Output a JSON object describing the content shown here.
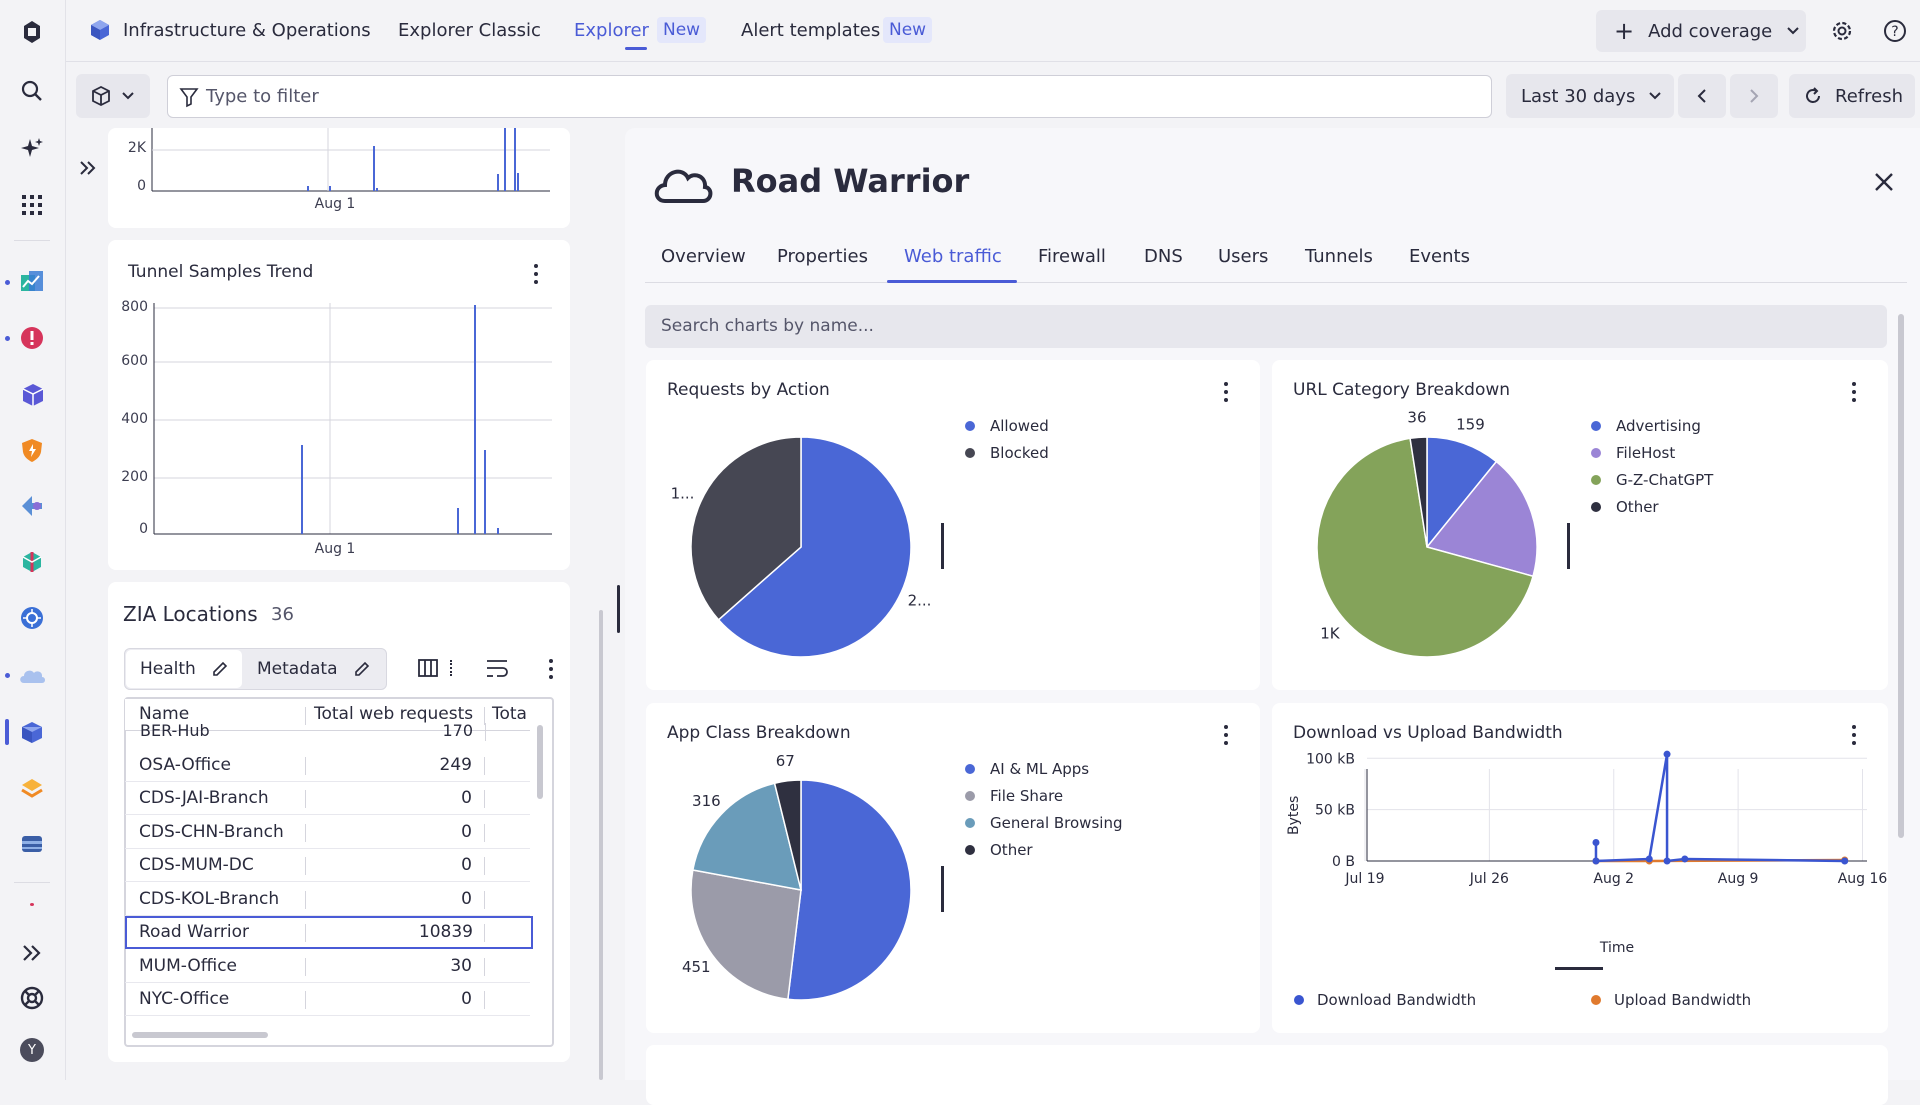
{
  "topnav": {
    "app_title": "Infrastructure & Operations",
    "tabs": [
      {
        "label": "Explorer Classic"
      },
      {
        "label": "Explorer",
        "badge": "New"
      },
      {
        "label": "Alert templates",
        "badge": "New"
      }
    ],
    "add_coverage": "Add coverage"
  },
  "toolbar": {
    "filter_placeholder": "Type to filter",
    "timeframe": "Last 30 days",
    "refresh": "Refresh"
  },
  "left": {
    "top_chart": {
      "y_ticks": [
        "2K",
        "0"
      ],
      "x_tick": "Aug 1"
    },
    "tunnel_chart": {
      "title": "Tunnel Samples Trend",
      "y_ticks": [
        "800",
        "600",
        "400",
        "200",
        "0"
      ],
      "x_tick": "Aug 1"
    },
    "locations": {
      "title": "ZIA Locations",
      "count": "36",
      "health_tab": "Health",
      "metadata_tab": "Metadata",
      "columns": [
        "Name",
        "Total web requests",
        "Tota"
      ],
      "rows": [
        {
          "name": "BER-Hub",
          "value": "170"
        },
        {
          "name": "OSA-Office",
          "value": "249"
        },
        {
          "name": "CDS-JAI-Branch",
          "value": "0"
        },
        {
          "name": "CDS-CHN-Branch",
          "value": "0"
        },
        {
          "name": "CDS-MUM-DC",
          "value": "0"
        },
        {
          "name": "CDS-KOL-Branch",
          "value": "0"
        },
        {
          "name": "Road Warrior",
          "value": "10839"
        },
        {
          "name": "MUM-Office",
          "value": "30"
        },
        {
          "name": "NYC-Office",
          "value": "0"
        }
      ]
    }
  },
  "detail": {
    "title": "Road Warrior",
    "tabs": [
      "Overview",
      "Properties",
      "Web traffic",
      "Firewall",
      "DNS",
      "Users",
      "Tunnels",
      "Events"
    ],
    "active_tab": "Web traffic",
    "search_placeholder": "Search charts by name..."
  },
  "chart_data": [
    {
      "type": "pie",
      "title": "Requests by Action",
      "labels": [
        "Allowed",
        "Blocked"
      ],
      "values": [
        2000,
        1150
      ],
      "slice_labels": [
        "2...",
        "1..."
      ],
      "colors": [
        "#4a67d6",
        "#464753"
      ]
    },
    {
      "type": "pie",
      "title": "URL Category Breakdown",
      "labels": [
        "Advertising",
        "FileHost",
        "G-Z-ChatGPT",
        "Other"
      ],
      "values": [
        159,
        270,
        1000,
        36
      ],
      "slice_labels": [
        "159",
        "",
        "1K",
        "36"
      ],
      "colors": [
        "#4a67d6",
        "#9b85d6",
        "#84a35a",
        "#2f3040"
      ]
    },
    {
      "type": "pie",
      "title": "App Class Breakdown",
      "labels": [
        "AI & ML Apps",
        "File Share",
        "General Browsing",
        "Other"
      ],
      "values": [
        900,
        451,
        316,
        67
      ],
      "slice_labels": [
        "",
        "451",
        "316",
        "67"
      ],
      "colors": [
        "#4a67d6",
        "#9b9ba9",
        "#6a9cba",
        "#2f3040"
      ]
    },
    {
      "type": "line",
      "title": "Download vs Upload Bandwidth",
      "xlabel": "Time",
      "ylabel": "Bytes",
      "x_ticks": [
        "Jul 19",
        "Jul 26",
        "Aug 2",
        "Aug 9",
        "Aug 16"
      ],
      "y_ticks": [
        "100 kB",
        "50 kB",
        "0 B"
      ],
      "ylim": [
        0,
        110
      ],
      "series": [
        {
          "name": "Download Bandwidth",
          "color": "#3a55d0",
          "points": [
            [
              "Aug 1",
              18
            ],
            [
              "Aug 1",
              0
            ],
            [
              "Aug 4",
              2
            ],
            [
              "Aug 5",
              104
            ],
            [
              "Aug 5",
              0
            ],
            [
              "Aug 6",
              2
            ],
            [
              "Aug 15",
              0
            ]
          ]
        },
        {
          "name": "Upload Bandwidth",
          "color": "#e07a2e",
          "points": [
            [
              "Aug 1",
              0
            ],
            [
              "Aug 4",
              0
            ],
            [
              "Aug 15",
              1
            ]
          ]
        }
      ]
    }
  ]
}
